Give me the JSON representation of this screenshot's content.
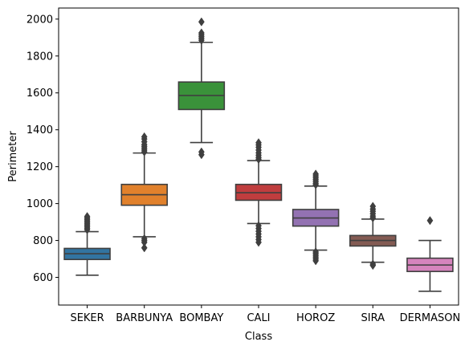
{
  "chart_data": {
    "type": "box",
    "xlabel": "Class",
    "ylabel": "Perimeter",
    "ylim": [
      450,
      2060
    ],
    "yticks": [
      600,
      800,
      1000,
      1200,
      1400,
      1600,
      1800,
      2000
    ],
    "ytick_labels": [
      "600",
      "800",
      "1000",
      "1200",
      "1400",
      "1600",
      "1800",
      "2000"
    ],
    "categories": [
      "SEKER",
      "BARBUNYA",
      "BOMBAY",
      "CALI",
      "HOROZ",
      "SIRA",
      "DERMASON"
    ],
    "colors": [
      "#3274a1",
      "#e1812c",
      "#3a923a",
      "#c03d3e",
      "#9372b2",
      "#845b53",
      "#d684bd"
    ],
    "boxes": [
      {
        "category": "SEKER",
        "whislo": 612,
        "q1": 697,
        "med": 728,
        "q3": 757,
        "whishi": 848,
        "fliers": [
          858,
          866,
          874,
          882,
          890,
          898,
          906,
          914,
          922,
          930
        ]
      },
      {
        "category": "BARBUNYA",
        "whislo": 820,
        "q1": 991,
        "med": 1048,
        "q3": 1104,
        "whishi": 1274,
        "fliers": [
          760,
          790,
          800,
          810,
          1280,
          1290,
          1300,
          1310,
          1320,
          1335,
          1350,
          1362
        ]
      },
      {
        "category": "BOMBAY",
        "whislo": 1331,
        "q1": 1510,
        "med": 1586,
        "q3": 1659,
        "whishi": 1874,
        "fliers": [
          1265,
          1280,
          1885,
          1895,
          1905,
          1915,
          1925,
          1985
        ]
      },
      {
        "category": "CALI",
        "whislo": 892,
        "q1": 1018,
        "med": 1059,
        "q3": 1104,
        "whishi": 1233,
        "fliers": [
          790,
          805,
          820,
          835,
          850,
          865,
          880,
          1240,
          1250,
          1262,
          1275,
          1290,
          1305,
          1318,
          1330
        ]
      },
      {
        "category": "HOROZ",
        "whislo": 748,
        "q1": 878,
        "med": 922,
        "q3": 968,
        "whishi": 1095,
        "fliers": [
          690,
          700,
          710,
          720,
          730,
          738,
          1102,
          1110,
          1120,
          1130,
          1140,
          1150,
          1160
        ]
      },
      {
        "category": "SIRA",
        "whislo": 682,
        "q1": 770,
        "med": 800,
        "q3": 827,
        "whishi": 916,
        "fliers": [
          665,
          672,
          922,
          932,
          945,
          958,
          970,
          985
        ]
      },
      {
        "category": "DERMASON",
        "whislo": 525,
        "q1": 632,
        "med": 667,
        "q3": 704,
        "whishi": 800,
        "fliers": [
          908
        ]
      }
    ]
  }
}
